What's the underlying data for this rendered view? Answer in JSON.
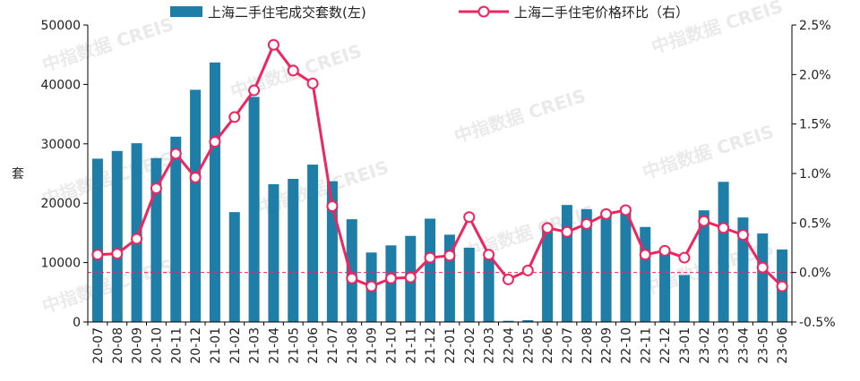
{
  "colors": {
    "bar": "#1f7ea8",
    "line": "#f0245f",
    "marker_fill": "#ffffff",
    "zero_line": "#f0245f",
    "watermark": "#d9d9d9",
    "axis": "#000000"
  },
  "watermark_text": "中指数据 CREIS",
  "chart_data": {
    "type": "bar",
    "categories": [
      "20-07",
      "20-08",
      "20-09",
      "20-10",
      "20-11",
      "20-12",
      "21-01",
      "21-02",
      "21-03",
      "21-04",
      "21-05",
      "21-06",
      "21-07",
      "21-08",
      "21-09",
      "21-10",
      "21-11",
      "21-12",
      "22-01",
      "22-02",
      "22-03",
      "22-04",
      "22-05",
      "22-06",
      "22-07",
      "22-08",
      "22-09",
      "22-10",
      "22-11",
      "22-12",
      "23-01",
      "23-02",
      "23-03",
      "23-04",
      "23-05",
      "23-06"
    ],
    "series": [
      {
        "name": "上海二手住宅成交套数(左)",
        "type": "bar",
        "axis": "left",
        "values": [
          27500,
          28800,
          30100,
          27600,
          31200,
          39100,
          43700,
          18500,
          37900,
          23200,
          24100,
          26500,
          23700,
          17300,
          11700,
          12900,
          14500,
          17400,
          14700,
          12500,
          10800,
          200,
          300,
          15500,
          19700,
          19000,
          17800,
          19400,
          16000,
          11800,
          7900,
          18800,
          23600,
          17600,
          14900,
          12200
        ]
      },
      {
        "name": "上海二手住宅价格环比（右）",
        "type": "line",
        "axis": "right",
        "values": [
          0.18,
          0.19,
          0.34,
          0.85,
          1.2,
          0.96,
          1.32,
          1.57,
          1.84,
          2.3,
          2.04,
          1.91,
          0.67,
          -0.06,
          -0.14,
          -0.06,
          -0.05,
          0.15,
          0.17,
          0.56,
          0.18,
          -0.07,
          0.02,
          0.45,
          0.41,
          0.49,
          0.59,
          0.63,
          0.18,
          0.22,
          0.15,
          0.52,
          0.45,
          0.38,
          0.05,
          -0.14
        ]
      }
    ],
    "yaxis_left": {
      "label": "套",
      "ylim": [
        0,
        50000
      ],
      "ticks": [
        "0",
        "10000",
        "20000",
        "30000",
        "40000",
        "50000"
      ]
    },
    "yaxis_right": {
      "ylim": [
        -0.5,
        2.5
      ],
      "ticks": [
        "-0.5%",
        "0.0%",
        "0.5%",
        "1.0%",
        "1.5%",
        "2.0%",
        "2.5%"
      ]
    },
    "legend_position": "top-center",
    "grid": false,
    "reference_line_right": 0.0
  }
}
